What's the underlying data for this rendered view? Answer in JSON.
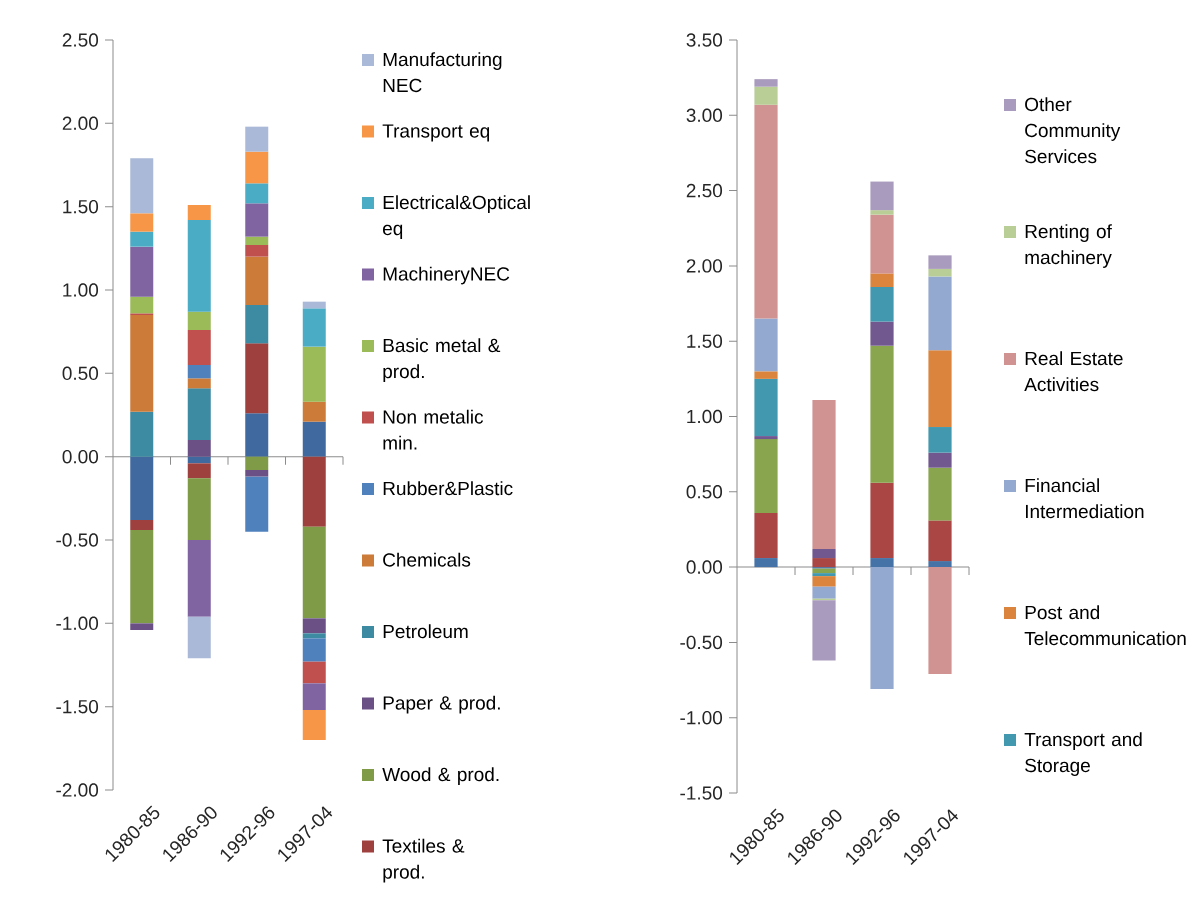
{
  "chart_data": [
    {
      "type": "bar",
      "stacked": true,
      "legend": "right",
      "categories": [
        "1980-85",
        "1986-90",
        "1992-96",
        "1997-04"
      ],
      "ylim": [
        -2,
        2.5
      ],
      "yticks": [
        {
          "value": -2,
          "label": "-2.00"
        },
        {
          "value": -1.5,
          "label": "-1.50"
        },
        {
          "value": -1,
          "label": "-1.00"
        },
        {
          "value": -0.5,
          "label": "-0.50"
        },
        {
          "value": 0,
          "label": "0.00"
        },
        {
          "value": 0.5,
          "label": "0.50"
        },
        {
          "value": 1,
          "label": "1.00"
        },
        {
          "value": 1.5,
          "label": "1.50"
        },
        {
          "value": 2,
          "label": "2.00"
        },
        {
          "value": 2.5,
          "label": "2.50"
        }
      ],
      "series": [
        {
          "color": "#4069a0",
          "values": [
            -0.38,
            -0.04,
            0.26,
            0.21
          ]
        },
        {
          "name": "Textiles & prod.",
          "color": "#9e403e",
          "values": [
            -0.06,
            -0.09,
            0.42,
            -0.42
          ]
        },
        {
          "name": "Wood & prod.",
          "color": "#7f9b48",
          "values": [
            -0.56,
            -0.37,
            -0.08,
            -0.55
          ]
        },
        {
          "name": "Paper & prod.",
          "color": "#6a5084",
          "values": [
            -0.04,
            0.1,
            -0.04,
            -0.09
          ]
        },
        {
          "name": "Petroleum",
          "color": "#3c8ba3",
          "values": [
            0.27,
            0.31,
            0.23,
            -0.03
          ]
        },
        {
          "name": "Chemicals",
          "color": "#cc7b38",
          "values": [
            0.58,
            0.06,
            0.29,
            0.12
          ]
        },
        {
          "name": "Rubber&Plastic",
          "color": "#4f81bd",
          "values": [
            null,
            0.08,
            -0.33,
            -0.14
          ]
        },
        {
          "name": "Non metalic min.",
          "color": "#c0504d",
          "values": [
            0.01,
            0.21,
            0.07,
            -0.13
          ]
        },
        {
          "name": "Basic metal & prod.",
          "color": "#9bbb59",
          "values": [
            0.1,
            0.11,
            0.05,
            0.33
          ]
        },
        {
          "name": "MachineryNEC",
          "color": "#8064a2",
          "values": [
            0.3,
            -0.46,
            0.2,
            -0.16
          ]
        },
        {
          "name": "Electrical&Optical eq",
          "color": "#4bacc6",
          "values": [
            0.09,
            0.55,
            0.12,
            0.23
          ]
        },
        {
          "name": "Transport eq",
          "color": "#f79646",
          "values": [
            0.11,
            0.09,
            0.19,
            -0.18
          ]
        },
        {
          "name": "Manufacturing NEC",
          "color": "#aab9d7",
          "values": [
            0.33,
            -0.25,
            0.15,
            0.04
          ]
        }
      ]
    },
    {
      "type": "bar",
      "stacked": true,
      "legend": "right",
      "categories": [
        "1980-85",
        "1986-90",
        "1992-96",
        "1997-04"
      ],
      "ylim": [
        -1.5,
        3.5
      ],
      "yticks": [
        {
          "value": -1.5,
          "label": "-1.50"
        },
        {
          "value": -1,
          "label": "-1.00"
        },
        {
          "value": -0.5,
          "label": "-0.50"
        },
        {
          "value": 0,
          "label": "0.00"
        },
        {
          "value": 0.5,
          "label": "0.50"
        },
        {
          "value": 1,
          "label": "1.00"
        },
        {
          "value": 1.5,
          "label": "1.50"
        },
        {
          "value": 2,
          "label": "2.00"
        },
        {
          "value": 2.5,
          "label": "2.50"
        },
        {
          "value": 3,
          "label": "3.00"
        },
        {
          "value": 3.5,
          "label": "3.50"
        }
      ],
      "series": [
        {
          "color": "#4572a7",
          "values": [
            0.06,
            -0.01,
            0.06,
            0.04
          ]
        },
        {
          "color": "#aa4643",
          "values": [
            0.3,
            0.06,
            0.5,
            0.27
          ]
        },
        {
          "color": "#89a54e",
          "values": [
            0.49,
            -0.03,
            0.91,
            0.35
          ]
        },
        {
          "color": "#71588f",
          "values": [
            0.02,
            0.06,
            0.16,
            0.1
          ]
        },
        {
          "name": "Transport and Storage",
          "color": "#4198af",
          "values": [
            0.38,
            -0.02,
            0.23,
            0.17
          ]
        },
        {
          "name": "Post and Telecommunication",
          "color": "#db843d",
          "values": [
            0.05,
            -0.07,
            0.09,
            0.51
          ]
        },
        {
          "name": "Financial Intermediation",
          "color": "#93a9cf",
          "values": [
            0.35,
            -0.08,
            -0.81,
            0.49
          ]
        },
        {
          "name": "Real Estate Activities",
          "color": "#d19392",
          "values": [
            1.42,
            0.99,
            0.39,
            -0.71
          ]
        },
        {
          "name": "Renting of machinery",
          "color": "#b9cd96",
          "values": [
            0.12,
            -0.01,
            0.03,
            0.05
          ]
        },
        {
          "name": "Other Community Services",
          "color": "#a99bbd",
          "values": [
            0.05,
            -0.4,
            0.19,
            0.09
          ]
        }
      ]
    }
  ]
}
